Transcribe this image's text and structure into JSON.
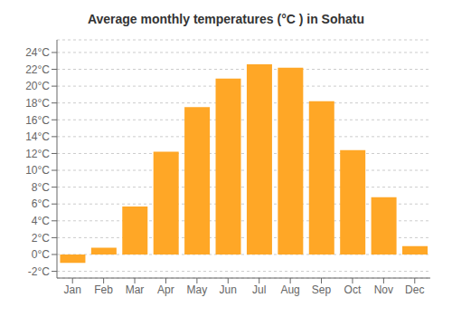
{
  "chart_data": {
    "type": "bar",
    "title": "Average monthly temperatures (°C ) in Sohatu",
    "categories": [
      "Jan",
      "Feb",
      "Mar",
      "Apr",
      "May",
      "Jun",
      "Jul",
      "Aug",
      "Sep",
      "Oct",
      "Nov",
      "Dec"
    ],
    "values": [
      -1.0,
      0.8,
      5.7,
      12.2,
      17.5,
      20.9,
      22.6,
      22.2,
      18.2,
      12.4,
      6.8,
      1.0
    ],
    "color": "#FFA726",
    "ylim": [
      -2.8,
      25.5
    ],
    "yticks": [
      {
        "value": -2,
        "label": "-2°C"
      },
      {
        "value": 0,
        "label": "0°C"
      },
      {
        "value": 2,
        "label": "2°C"
      },
      {
        "value": 4,
        "label": "4°C"
      },
      {
        "value": 6,
        "label": "6°C"
      },
      {
        "value": 8,
        "label": "8°C"
      },
      {
        "value": 10,
        "label": "10°C"
      },
      {
        "value": 12,
        "label": "12°C"
      },
      {
        "value": 14,
        "label": "14°C"
      },
      {
        "value": 16,
        "label": "16°C"
      },
      {
        "value": 18,
        "label": "18°C"
      },
      {
        "value": 20,
        "label": "20°C"
      },
      {
        "value": 22,
        "label": "22°C"
      },
      {
        "value": 24,
        "label": "24°C"
      }
    ],
    "grid": true
  }
}
